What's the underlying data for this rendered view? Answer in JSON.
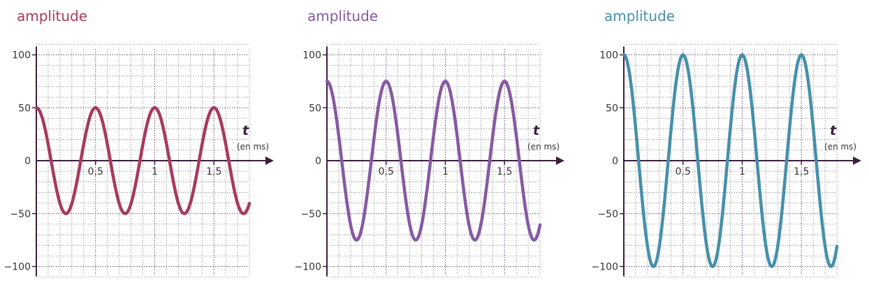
{
  "axis_color": "#3d1f3f",
  "grid_color": "#8a8a8a",
  "chart_data": [
    {
      "type": "line",
      "ylabel": "amplitude",
      "xlabel": "t",
      "xunit": "(en ms)",
      "color": "#a83a5e",
      "xlim": [
        0,
        1.8
      ],
      "ylim": [
        -100,
        100
      ],
      "xticks": [
        0.5,
        1,
        1.5
      ],
      "xtick_labels": [
        "0,5",
        "1",
        "1,5"
      ],
      "yticks": [
        100,
        50,
        0,
        -50,
        -100
      ],
      "ytick_labels": [
        "100",
        "50",
        "0",
        "−50",
        "−100"
      ],
      "zero_label": "0",
      "grid": true,
      "series": [
        {
          "function": "cosine",
          "amplitude": 50,
          "period_ms": 0.5,
          "x_start": 0,
          "x_end": 1.8
        }
      ]
    },
    {
      "type": "line",
      "ylabel": "amplitude",
      "xlabel": "t",
      "xunit": "(en ms)",
      "color": "#8659a3",
      "xlim": [
        0,
        1.8
      ],
      "ylim": [
        -100,
        100
      ],
      "xticks": [
        0.5,
        1,
        1.5
      ],
      "xtick_labels": [
        "0,5",
        "1",
        "1,5"
      ],
      "yticks": [
        100,
        50,
        0,
        -50,
        -100
      ],
      "ytick_labels": [
        "100",
        "50",
        "0",
        "−50",
        "−100"
      ],
      "zero_label": "0",
      "grid": true,
      "series": [
        {
          "function": "cosine",
          "amplitude": 75,
          "period_ms": 0.5,
          "x_start": 0,
          "x_end": 1.8
        }
      ]
    },
    {
      "type": "line",
      "ylabel": "amplitude",
      "xlabel": "t",
      "xunit": "(en ms)",
      "color": "#4590aa",
      "xlim": [
        0,
        1.8
      ],
      "ylim": [
        -100,
        100
      ],
      "xticks": [
        0.5,
        1,
        1.5
      ],
      "xtick_labels": [
        "0,5",
        "1",
        "1,5"
      ],
      "yticks": [
        100,
        50,
        0,
        -50,
        -100
      ],
      "ytick_labels": [
        "100",
        "50",
        "0",
        "−50",
        "−100"
      ],
      "zero_label": "0",
      "grid": true,
      "series": [
        {
          "function": "cosine",
          "amplitude": 100,
          "period_ms": 0.5,
          "x_start": 0,
          "x_end": 1.8
        }
      ]
    }
  ]
}
